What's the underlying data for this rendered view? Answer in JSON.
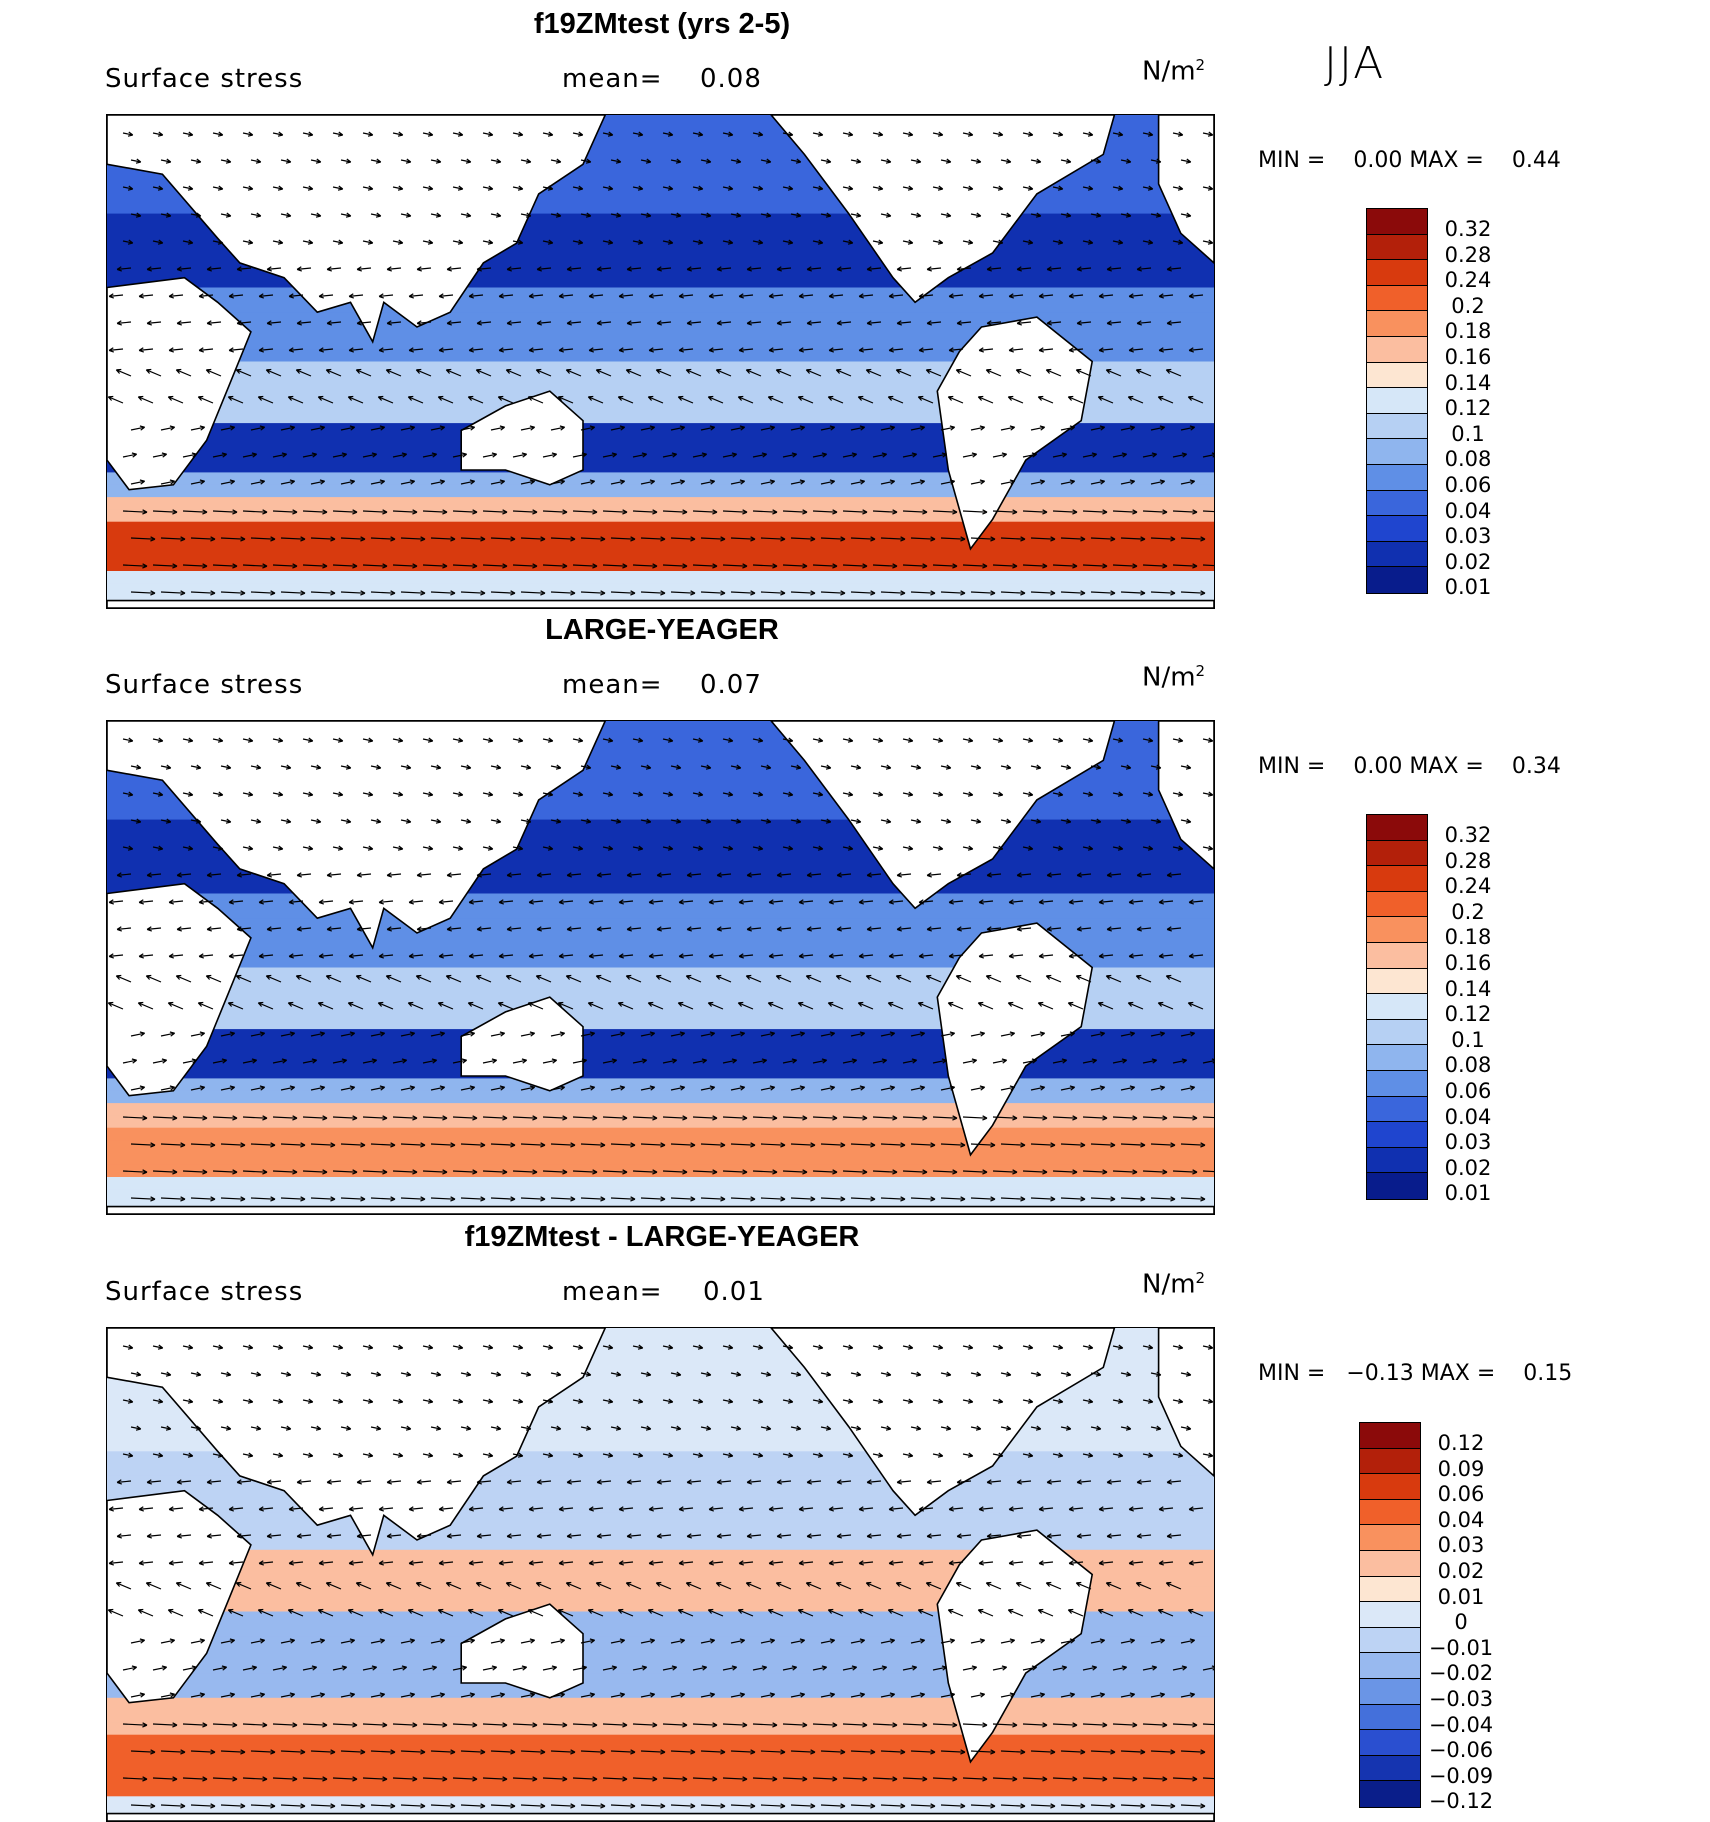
{
  "season": "JJA",
  "units_text": "N/m",
  "units_exp": "2",
  "panels": [
    {
      "title": "f19ZMtest (yrs 2-5)",
      "field": "Surface stress",
      "mean_label": "mean=",
      "mean_value": "0.08",
      "min_label": "MIN =",
      "min_value": "0.00",
      "max_label": "MAX =",
      "max_value": "0.44",
      "colorbar_labels": [
        "0.32",
        "0.28",
        "0.24",
        "0.2",
        "0.18",
        "0.16",
        "0.14",
        "0.12",
        "0.1",
        "0.08",
        "0.06",
        "0.04",
        "0.03",
        "0.02",
        "0.01"
      ],
      "colorbar_colors": [
        "#8b0a0a",
        "#b3200a",
        "#d83a0e",
        "#f0602a",
        "#f9915e",
        "#fbbea0",
        "#fde6d2",
        "#d6e7f8",
        "#b6d0f3",
        "#8fb5ee",
        "#5f8fe6",
        "#3a66dc",
        "#1f45cf",
        "#1030b0",
        "#081c8c"
      ]
    },
    {
      "title": "LARGE-YEAGER",
      "field": "Surface stress",
      "mean_label": "mean=",
      "mean_value": "0.07",
      "min_label": "MIN =",
      "min_value": "0.00",
      "max_label": "MAX =",
      "max_value": "0.34",
      "colorbar_labels": [
        "0.32",
        "0.28",
        "0.24",
        "0.2",
        "0.18",
        "0.16",
        "0.14",
        "0.12",
        "0.1",
        "0.08",
        "0.06",
        "0.04",
        "0.03",
        "0.02",
        "0.01"
      ],
      "colorbar_colors": [
        "#8b0a0a",
        "#b3200a",
        "#d83a0e",
        "#f0602a",
        "#f9915e",
        "#fbbea0",
        "#fde6d2",
        "#d6e7f8",
        "#b6d0f3",
        "#8fb5ee",
        "#5f8fe6",
        "#3a66dc",
        "#1f45cf",
        "#1030b0",
        "#081c8c"
      ]
    },
    {
      "title": "f19ZMtest - LARGE-YEAGER",
      "field": "Surface stress",
      "mean_label": "mean=",
      "mean_value": "0.01",
      "min_label": "MIN =",
      "min_value": "−0.13",
      "max_label": "MAX =",
      "max_value": "0.15",
      "colorbar_labels": [
        "0.12",
        "0.09",
        "0.06",
        "0.04",
        "0.03",
        "0.02",
        "0.01",
        "0",
        "−0.01",
        "−0.02",
        "−0.03",
        "−0.04",
        "−0.06",
        "−0.09",
        "−0.12"
      ],
      "colorbar_colors": [
        "#8b0a0a",
        "#b3200a",
        "#d83a0e",
        "#f0602a",
        "#f9915e",
        "#fbbea0",
        "#fde6d2",
        "#dbe8f8",
        "#bdd3f4",
        "#98b9ef",
        "#6a95e6",
        "#4470db",
        "#2a4fd0",
        "#1534b0",
        "#0a1e8a"
      ]
    }
  ]
}
